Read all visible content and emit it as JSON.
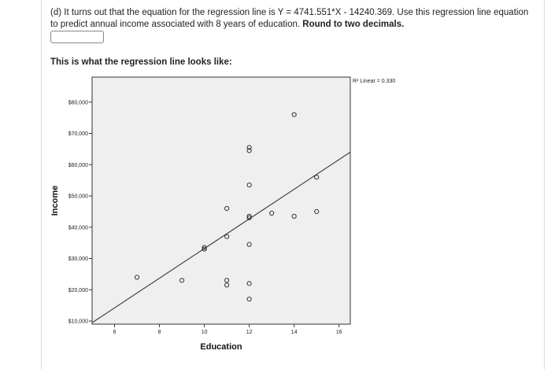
{
  "question": {
    "part": "(d)",
    "text_before_bold": "It turns out that the equation for the regression line is Y = 4741.551*X - 14240.369. Use this regression line equation to predict annual income associated with 8 years of education.",
    "text_bold": "Round to two decimals."
  },
  "answer": {
    "value": ""
  },
  "caption": "This is what the regression line looks like:",
  "chart_data": {
    "type": "scatter",
    "xlabel": "Education",
    "ylabel": "Income",
    "xlim": [
      5,
      16.5
    ],
    "ylim": [
      9000,
      88000
    ],
    "x_ticks": [
      {
        "value": 6,
        "label": "6"
      },
      {
        "value": 8,
        "label": "8"
      },
      {
        "value": 10,
        "label": "10"
      },
      {
        "value": 12,
        "label": "12"
      },
      {
        "value": 14,
        "label": "14"
      },
      {
        "value": 16,
        "label": "16"
      }
    ],
    "y_ticks": [
      {
        "value": 10000,
        "label": "$10,000"
      },
      {
        "value": 20000,
        "label": "$20,000"
      },
      {
        "value": 30000,
        "label": "$30,000"
      },
      {
        "value": 40000,
        "label": "$40,000"
      },
      {
        "value": 50000,
        "label": "$50,000"
      },
      {
        "value": 60000,
        "label": "$60,000"
      },
      {
        "value": 70000,
        "label": "$70,000"
      },
      {
        "value": 80000,
        "label": "$80,000"
      }
    ],
    "points": [
      {
        "x": 7,
        "y": 24000
      },
      {
        "x": 9,
        "y": 23000
      },
      {
        "x": 10,
        "y": 33000
      },
      {
        "x": 10,
        "y": 33500
      },
      {
        "x": 11,
        "y": 23000
      },
      {
        "x": 11,
        "y": 21500
      },
      {
        "x": 11,
        "y": 37000
      },
      {
        "x": 11,
        "y": 46000
      },
      {
        "x": 12,
        "y": 22000
      },
      {
        "x": 12,
        "y": 17000
      },
      {
        "x": 12,
        "y": 34500
      },
      {
        "x": 12,
        "y": 43500
      },
      {
        "x": 12,
        "y": 43000
      },
      {
        "x": 12,
        "y": 53500
      },
      {
        "x": 12,
        "y": 64500
      },
      {
        "x": 12,
        "y": 65500
      },
      {
        "x": 13,
        "y": 44500
      },
      {
        "x": 14,
        "y": 43500
      },
      {
        "x": 14,
        "y": 76000
      },
      {
        "x": 15,
        "y": 45000
      },
      {
        "x": 15,
        "y": 56000
      }
    ],
    "regression": {
      "slope": 4741.551,
      "intercept": -14240.369
    },
    "legend": {
      "label": "R² Linear = 0.330",
      "position": "top-right"
    },
    "plot_background": "#efefef",
    "grid": false
  }
}
